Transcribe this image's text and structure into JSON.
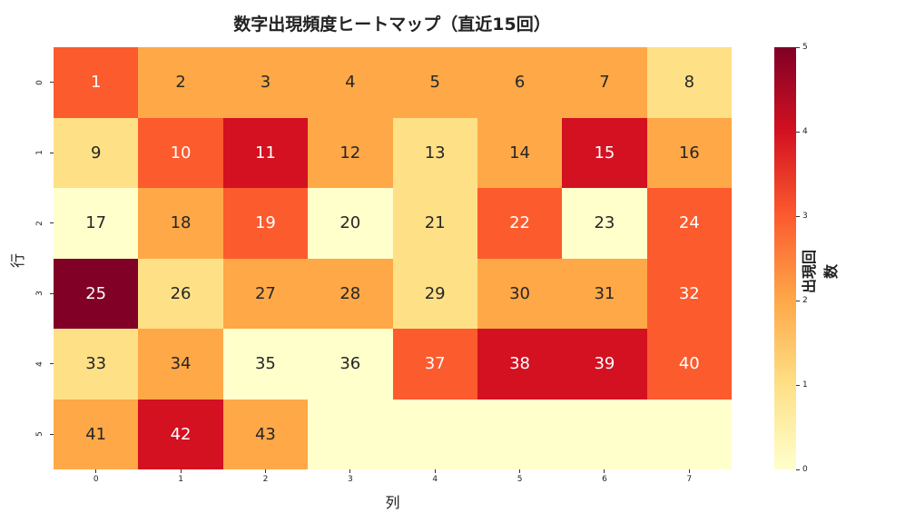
{
  "chart_data": {
    "type": "heatmap",
    "title": "数字出現頻度ヒートマップ（直近15回）",
    "xlabel": "列",
    "ylabel": "行",
    "x_ticks": [
      "0",
      "1",
      "2",
      "3",
      "4",
      "5",
      "6",
      "7"
    ],
    "y_ticks": [
      "0",
      "1",
      "2",
      "3",
      "4",
      "5"
    ],
    "annotations": [
      [
        "1",
        "2",
        "3",
        "4",
        "5",
        "6",
        "7",
        "8"
      ],
      [
        "9",
        "10",
        "11",
        "12",
        "13",
        "14",
        "15",
        "16"
      ],
      [
        "17",
        "18",
        "19",
        "20",
        "21",
        "22",
        "23",
        "24"
      ],
      [
        "25",
        "26",
        "27",
        "28",
        "29",
        "30",
        "31",
        "32"
      ],
      [
        "33",
        "34",
        "35",
        "36",
        "37",
        "38",
        "39",
        "40"
      ],
      [
        "41",
        "42",
        "43",
        "",
        "",
        "",
        "",
        ""
      ]
    ],
    "values": [
      [
        3,
        2,
        2,
        2,
        2,
        2,
        2,
        1
      ],
      [
        1,
        3,
        4,
        2,
        1,
        2,
        4,
        2
      ],
      [
        0,
        2,
        3,
        0,
        1,
        3,
        0,
        3
      ],
      [
        5,
        1,
        2,
        2,
        1,
        2,
        2,
        3
      ],
      [
        1,
        2,
        0,
        0,
        3,
        4,
        4,
        3
      ],
      [
        2,
        4,
        2,
        0,
        0,
        0,
        0,
        0
      ]
    ],
    "colorbar": {
      "label": "出現回数",
      "ticks": [
        "0",
        "1",
        "2",
        "3",
        "4",
        "5"
      ],
      "range": [
        0,
        5
      ],
      "colormap": "YlOrRd"
    },
    "colors": [
      "#ffffcc",
      "#fee087",
      "#fea848",
      "#fc5b2e",
      "#d31121",
      "#800026"
    ]
  }
}
